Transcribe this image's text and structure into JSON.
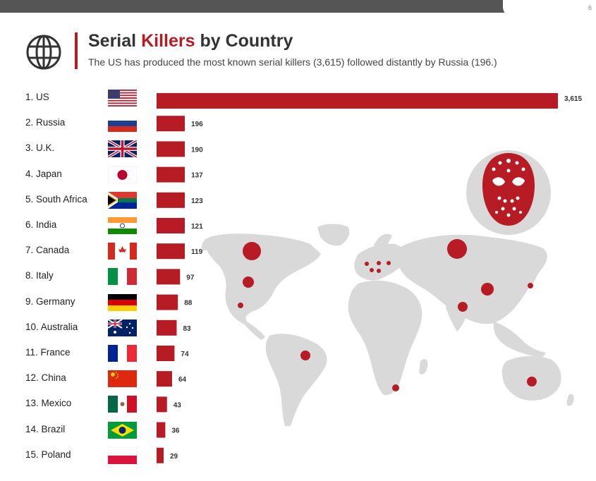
{
  "header": {
    "title_part1": "Serial ",
    "title_accent": "Killers",
    "title_part2": " by Country",
    "subtitle": "The US has produced the most known serial killers (3,615) followed distantly by Russia (196.)",
    "page_number": "6"
  },
  "colors": {
    "accent": "#b71c24",
    "map_land": "#d9d9d9",
    "dots": "#b71c24"
  },
  "icons": {
    "globe": "globe-icon",
    "mask": "hockey-mask-icon"
  },
  "chart_data": {
    "type": "bar",
    "orientation": "horizontal",
    "categories": [
      "1. US",
      "2. Russia",
      "3. U.K.",
      "4. Japan",
      "5. South Africa",
      "6. India",
      "7. Canada",
      "8. Italy",
      "9. Germany",
      "10. Australia",
      "11. France",
      "12. China",
      "13. Mexico",
      "14. Brazil",
      "15. Poland"
    ],
    "values": [
      3615,
      196,
      190,
      137,
      123,
      121,
      119,
      97,
      88,
      83,
      74,
      64,
      43,
      36,
      29
    ],
    "value_labels": [
      "3,615",
      "196",
      "190",
      "137",
      "123",
      "121",
      "119",
      "97",
      "88",
      "83",
      "74",
      "64",
      "43",
      "36",
      "29"
    ],
    "flags": [
      "us",
      "ru",
      "uk",
      "jp",
      "za",
      "in",
      "ca",
      "it",
      "de",
      "au",
      "fr",
      "cn",
      "mx",
      "br",
      "pl"
    ],
    "bar_color": "#b71c24",
    "grid": false
  }
}
